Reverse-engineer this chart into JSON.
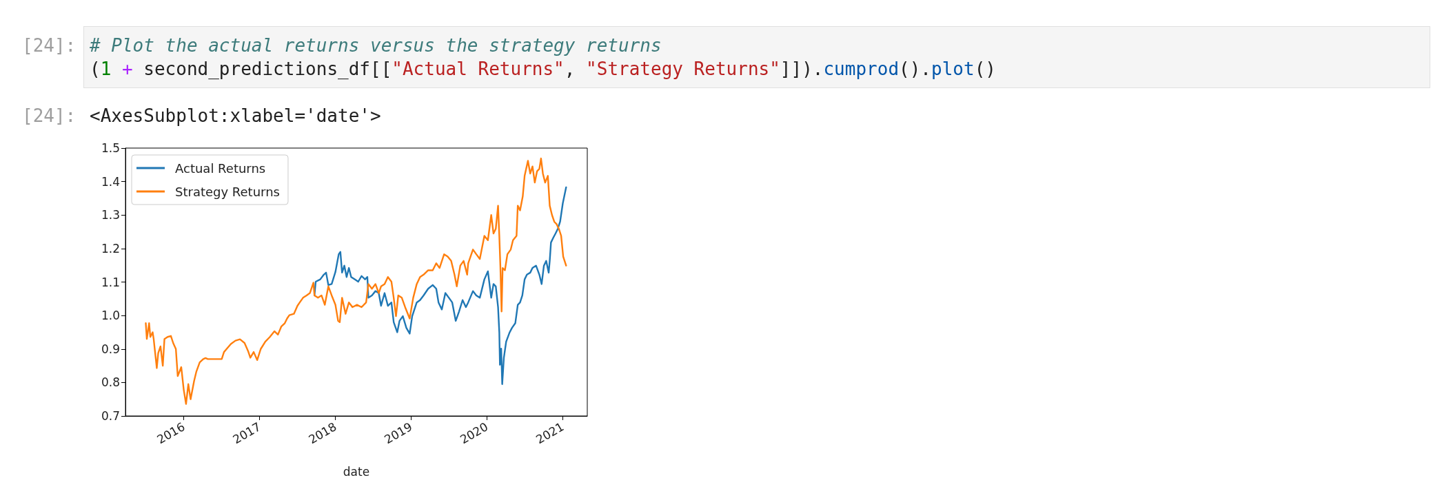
{
  "chart_data": {
    "type": "line",
    "xlabel": "date",
    "annotations": [
      "[24]:",
      "# Plot the actual returns versus the strategy returns",
      "(1 + second_predictions_df[[\"Actual Returns\", \"Strategy Returns\"]]).cumprod().plot()",
      "[24]:",
      "<AxesSubplot:xlabel='date'>"
    ],
    "series": [
      {
        "name": "Actual Returns",
        "color": "#1f77b4",
        "x": [
          "2017-09-22",
          "2017-09-28",
          "2017-10-20",
          "2017-11-06",
          "2017-11-17",
          "2017-11-28",
          "2017-12-14",
          "2018-01-01",
          "2018-01-17",
          "2018-01-25",
          "2018-02-02",
          "2018-02-13",
          "2018-02-24",
          "2018-03-07",
          "2018-03-18",
          "2018-04-04",
          "2018-04-21",
          "2018-05-07",
          "2018-05-24",
          "2018-06-04",
          "2018-06-09",
          "2018-06-26",
          "2018-07-13",
          "2018-07-29",
          "2018-08-09",
          "2018-08-26",
          "2018-09-11",
          "2018-09-28",
          "2018-10-09",
          "2018-10-26",
          "2018-11-06",
          "2018-11-22",
          "2018-12-09",
          "2018-12-25",
          "2019-01-06",
          "2019-01-28",
          "2019-02-13",
          "2019-03-02",
          "2019-03-24",
          "2019-04-15",
          "2019-05-02",
          "2019-05-13",
          "2019-05-29",
          "2019-06-15",
          "2019-07-02",
          "2019-07-18",
          "2019-08-04",
          "2019-08-20",
          "2019-09-06",
          "2019-09-22",
          "2019-10-03",
          "2019-10-26",
          "2019-11-11",
          "2019-11-28",
          "2019-12-20",
          "2020-01-06",
          "2020-01-22",
          "2020-02-02",
          "2020-02-13",
          "2020-02-24",
          "2020-03-01",
          "2020-03-04",
          "2020-03-10",
          "2020-03-15",
          "2020-03-23",
          "2020-04-03",
          "2020-04-20",
          "2020-05-01",
          "2020-05-17",
          "2020-05-29",
          "2020-06-09",
          "2020-06-20",
          "2020-07-01",
          "2020-07-12",
          "2020-07-28",
          "2020-08-08",
          "2020-08-25",
          "2020-09-10",
          "2020-09-21",
          "2020-10-02",
          "2020-10-13",
          "2020-10-25",
          "2020-10-30",
          "2020-11-05",
          "2020-11-16",
          "2020-11-27",
          "2020-12-08",
          "2020-12-19",
          "2021-01-01",
          "2021-01-17"
        ],
        "values": [
          1.06,
          1.101,
          1.108,
          1.122,
          1.128,
          1.091,
          1.094,
          1.13,
          1.183,
          1.19,
          1.128,
          1.149,
          1.115,
          1.142,
          1.115,
          1.108,
          1.101,
          1.118,
          1.108,
          1.115,
          1.053,
          1.06,
          1.073,
          1.067,
          1.029,
          1.067,
          1.029,
          1.039,
          0.98,
          0.95,
          0.984,
          0.998,
          0.963,
          0.946,
          0.998,
          1.039,
          1.046,
          1.06,
          1.08,
          1.091,
          1.08,
          1.039,
          1.018,
          1.067,
          1.053,
          1.039,
          0.984,
          1.012,
          1.046,
          1.025,
          1.039,
          1.073,
          1.06,
          1.053,
          1.108,
          1.132,
          1.053,
          1.094,
          1.087,
          1.025,
          0.95,
          0.853,
          0.901,
          0.795,
          0.874,
          0.922,
          0.95,
          0.963,
          0.977,
          1.032,
          1.039,
          1.06,
          1.108,
          1.122,
          1.128,
          1.142,
          1.149,
          1.122,
          1.094,
          1.149,
          1.163,
          1.128,
          1.163,
          1.218,
          1.232,
          1.245,
          1.259,
          1.28,
          1.335,
          1.383
        ]
      },
      {
        "name": "Strategy Returns",
        "color": "#ff7f0e",
        "x": [
          "2015-07-02",
          "2015-07-07",
          "2015-07-18",
          "2015-07-24",
          "2015-08-04",
          "2015-08-09",
          "2015-08-24",
          "2015-08-31",
          "2015-09-11",
          "2015-09-22",
          "2015-09-30",
          "2015-10-15",
          "2015-10-31",
          "2015-11-11",
          "2015-11-24",
          "2015-12-03",
          "2015-12-20",
          "2016-01-01",
          "2016-01-12",
          "2016-01-23",
          "2016-02-03",
          "2016-02-20",
          "2016-03-02",
          "2016-03-18",
          "2016-04-04",
          "2016-04-15",
          "2016-04-26",
          "2016-07-02",
          "2016-07-13",
          "2016-08-15",
          "2016-09-06",
          "2016-09-28",
          "2016-10-20",
          "2016-11-06",
          "2016-11-17",
          "2016-12-03",
          "2016-12-20",
          "2017-01-06",
          "2017-01-28",
          "2017-02-19",
          "2017-03-13",
          "2017-03-30",
          "2017-04-15",
          "2017-05-02",
          "2017-05-13",
          "2017-05-24",
          "2017-06-15",
          "2017-07-02",
          "2017-07-13",
          "2017-07-29",
          "2017-08-15",
          "2017-08-31",
          "2017-09-17",
          "2017-09-22",
          "2017-10-09",
          "2017-10-26",
          "2017-11-11",
          "2017-11-28",
          "2017-12-14",
          "2018-01-01",
          "2018-01-14",
          "2018-01-22",
          "2018-02-02",
          "2018-02-19",
          "2018-03-07",
          "2018-03-24",
          "2018-04-15",
          "2018-05-07",
          "2018-05-29",
          "2018-06-09",
          "2018-06-26",
          "2018-07-13",
          "2018-07-29",
          "2018-08-09",
          "2018-08-26",
          "2018-09-11",
          "2018-09-28",
          "2018-10-09",
          "2018-10-20",
          "2018-10-31",
          "2018-11-17",
          "2018-12-03",
          "2018-12-25",
          "2019-01-11",
          "2019-01-28",
          "2019-02-13",
          "2019-03-02",
          "2019-03-24",
          "2019-04-15",
          "2019-05-02",
          "2019-05-18",
          "2019-06-09",
          "2019-06-26",
          "2019-07-13",
          "2019-07-29",
          "2019-08-09",
          "2019-08-26",
          "2019-09-11",
          "2019-09-28",
          "2019-10-03",
          "2019-10-26",
          "2019-11-11",
          "2019-11-28",
          "2019-12-20",
          "2020-01-06",
          "2020-01-22",
          "2020-02-02",
          "2020-02-13",
          "2020-02-24",
          "2020-03-01",
          "2020-03-06",
          "2020-03-12",
          "2020-03-17",
          "2020-03-28",
          "2020-04-09",
          "2020-04-25",
          "2020-05-06",
          "2020-05-23",
          "2020-05-29",
          "2020-06-09",
          "2020-06-22",
          "2020-07-01",
          "2020-07-17",
          "2020-07-28",
          "2020-08-08",
          "2020-08-19",
          "2020-08-30",
          "2020-09-10",
          "2020-09-18",
          "2020-09-27",
          "2020-10-08",
          "2020-10-21",
          "2020-10-30",
          "2020-11-10",
          "2020-11-21",
          "2020-12-02",
          "2020-12-13",
          "2020-12-24",
          "2021-01-03",
          "2021-01-17"
        ],
        "values": [
          0.977,
          0.93,
          0.977,
          0.936,
          0.95,
          0.93,
          0.843,
          0.888,
          0.908,
          0.85,
          0.93,
          0.936,
          0.939,
          0.918,
          0.9,
          0.819,
          0.846,
          0.778,
          0.736,
          0.795,
          0.75,
          0.805,
          0.833,
          0.86,
          0.87,
          0.873,
          0.87,
          0.87,
          0.891,
          0.915,
          0.925,
          0.929,
          0.918,
          0.894,
          0.874,
          0.891,
          0.867,
          0.9,
          0.922,
          0.936,
          0.953,
          0.943,
          0.967,
          0.977,
          0.991,
          1.001,
          1.005,
          1.029,
          1.039,
          1.053,
          1.06,
          1.067,
          1.098,
          1.06,
          1.053,
          1.06,
          1.032,
          1.087,
          1.06,
          1.032,
          0.984,
          0.98,
          1.053,
          1.005,
          1.039,
          1.025,
          1.032,
          1.025,
          1.039,
          1.094,
          1.08,
          1.094,
          1.067,
          1.087,
          1.094,
          1.115,
          1.101,
          1.053,
          0.998,
          1.06,
          1.053,
          1.025,
          0.991,
          1.053,
          1.094,
          1.115,
          1.122,
          1.135,
          1.135,
          1.156,
          1.142,
          1.183,
          1.176,
          1.163,
          1.122,
          1.087,
          1.149,
          1.163,
          1.122,
          1.156,
          1.197,
          1.183,
          1.169,
          1.238,
          1.225,
          1.3,
          1.245,
          1.259,
          1.328,
          1.238,
          1.149,
          1.012,
          1.142,
          1.135,
          1.183,
          1.197,
          1.225,
          1.238,
          1.328,
          1.314,
          1.356,
          1.417,
          1.462,
          1.424,
          1.445,
          1.397,
          1.431,
          1.438,
          1.469,
          1.424,
          1.397,
          1.417,
          1.328,
          1.3,
          1.28,
          1.273,
          1.259,
          1.238,
          1.176,
          1.149
        ]
      }
    ],
    "xlim": [
      "2015-03-26",
      "2021-04-29"
    ],
    "xticks": [
      "2016",
      "2017",
      "2018",
      "2019",
      "2020",
      "2021"
    ],
    "ylim": [
      0.7,
      1.5
    ],
    "yticks": [
      0.7,
      0.8,
      0.9,
      {
        "value": 1,
        "label": "1.0"
      },
      1.1,
      1.2,
      1.3,
      1.4,
      1.5
    ],
    "legend": "top left",
    "grid": false,
    "marker": "none"
  }
}
